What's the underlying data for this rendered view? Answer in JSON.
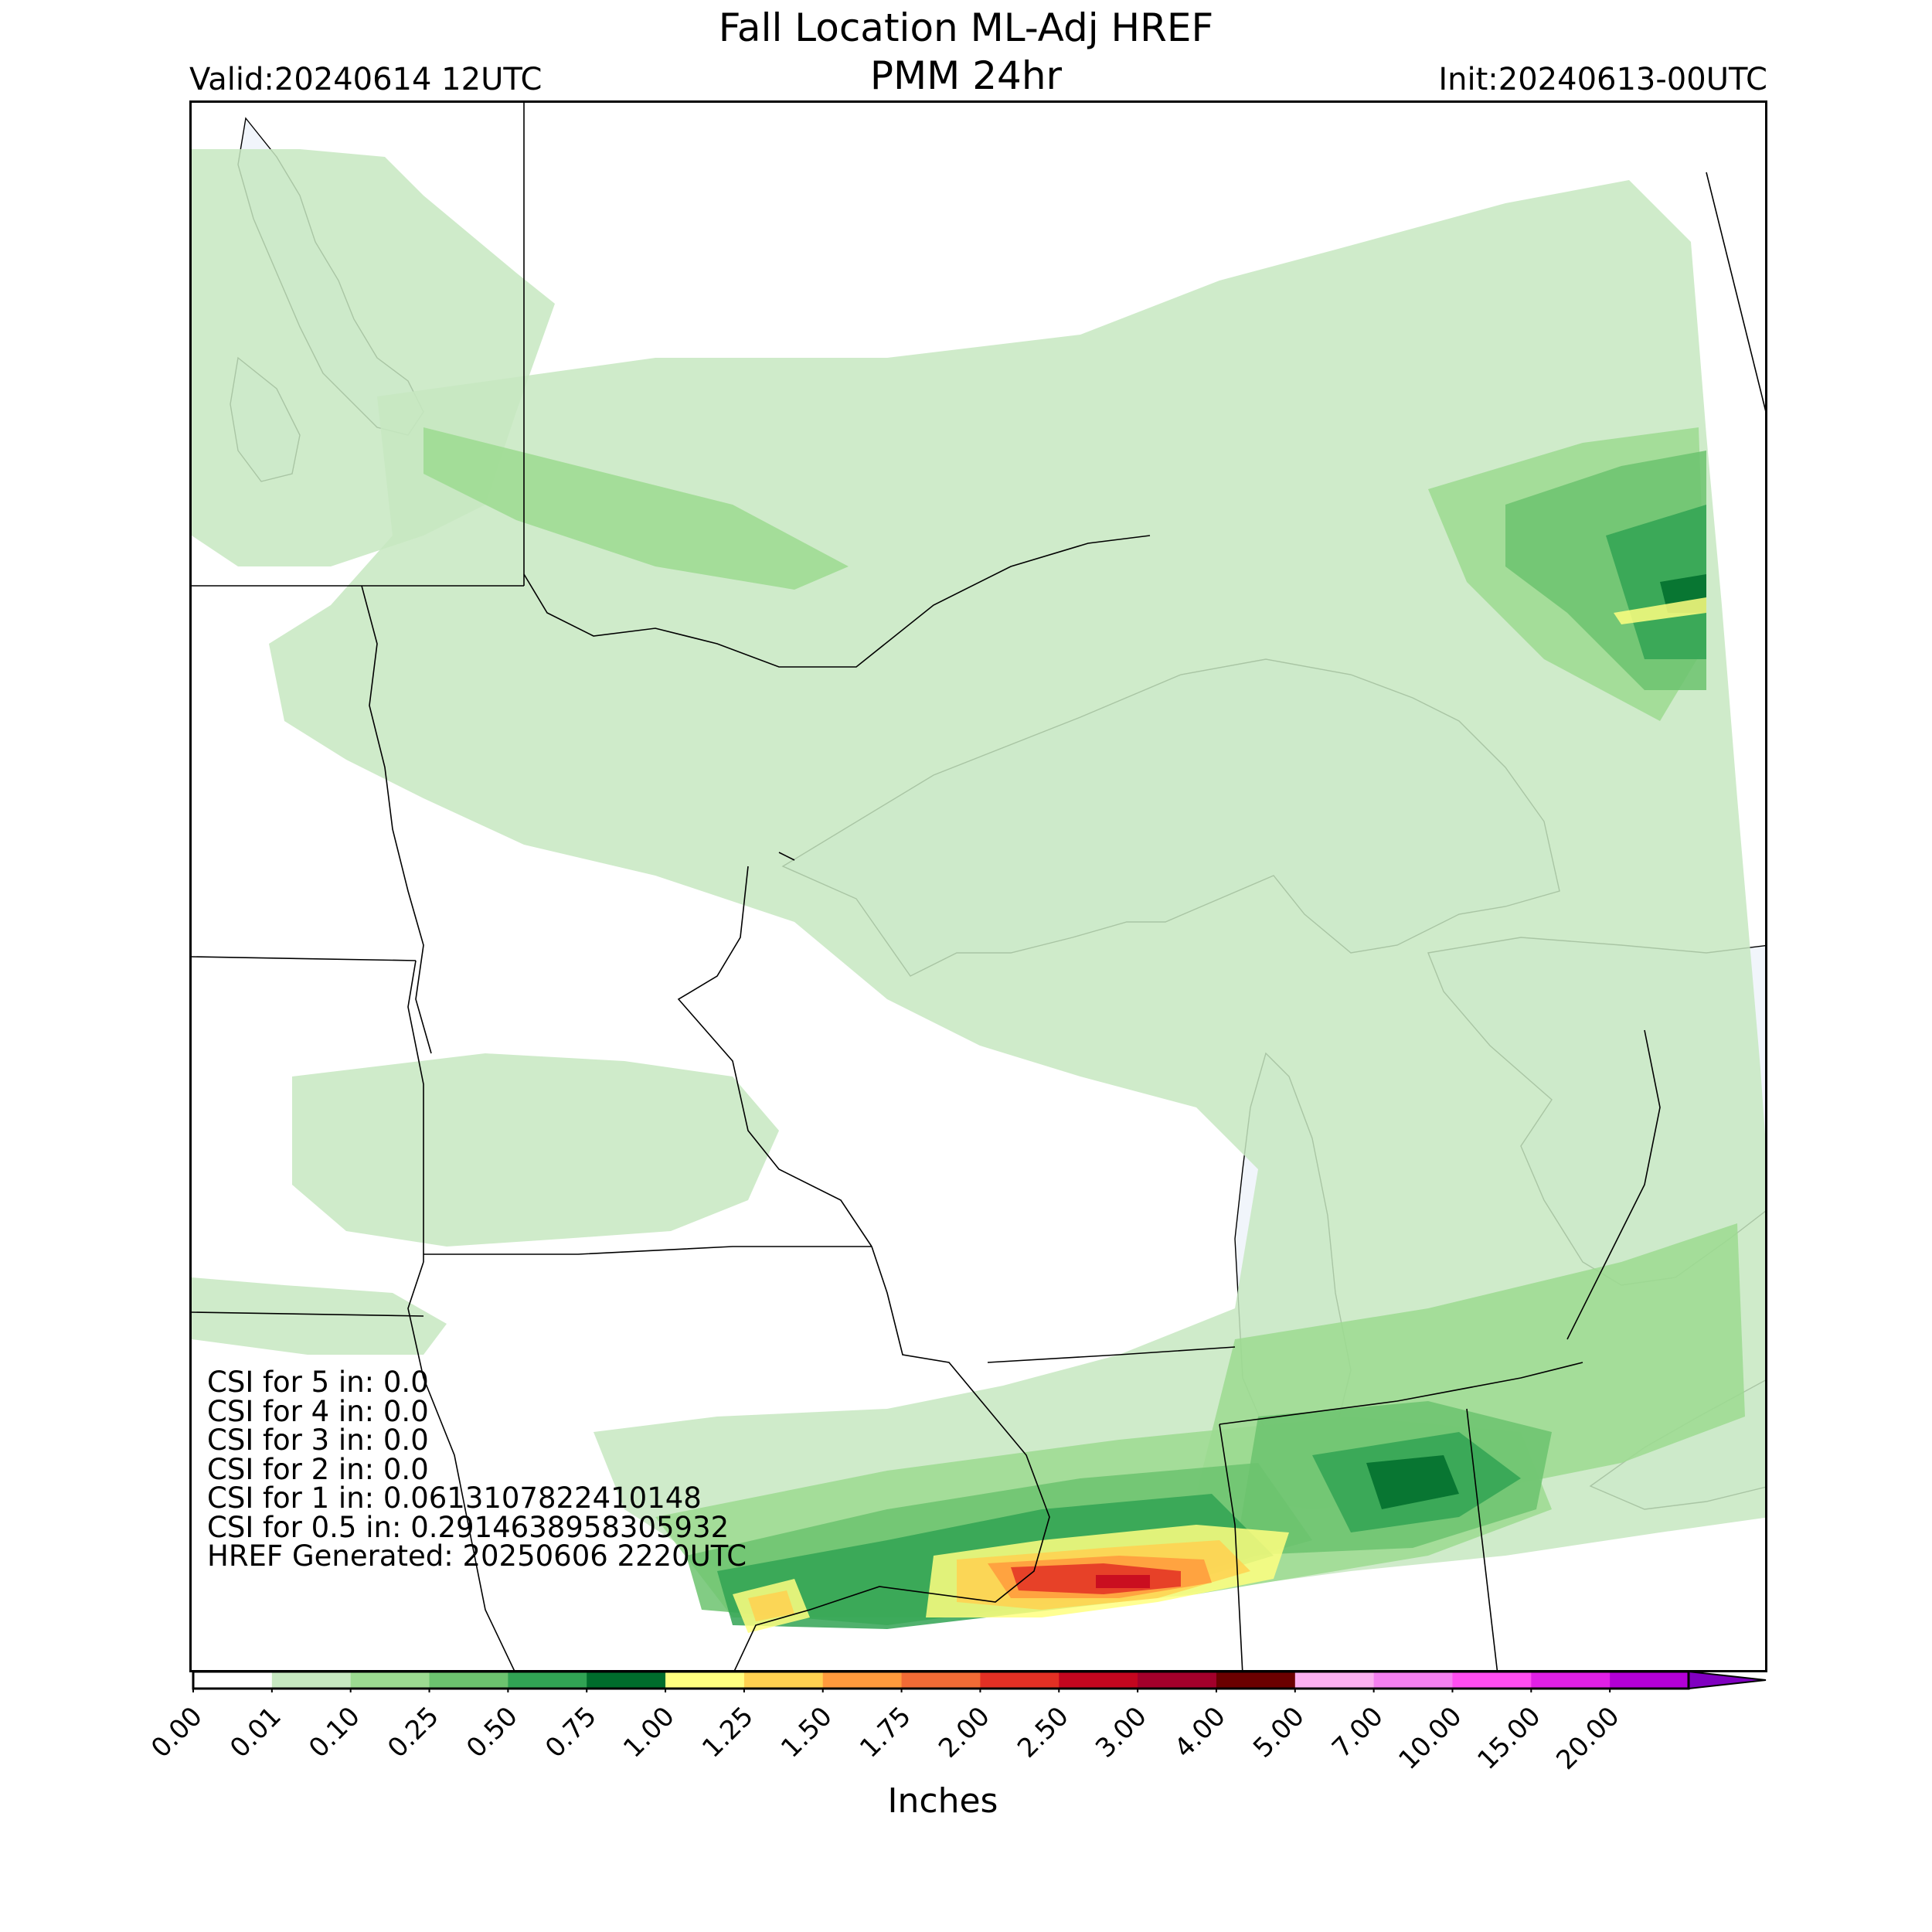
{
  "header": {
    "title_line1": "Fall Location ML-Adj HREF",
    "title_line2": "PMM 24hr",
    "valid": "Valid:20240614 12UTC",
    "init": "Init:20240613-00UTC"
  },
  "stats": {
    "lines": [
      "CSI for 5 in: 0.0",
      "CSI for 4 in: 0.0",
      "CSI for 3 in: 0.0",
      "CSI for 2 in: 0.0",
      "CSI for 1 in: 0.0613107822410148",
      "CSI for 0.5 in: 0.2914638958305932",
      "HREF Generated: 20250606 2220UTC"
    ]
  },
  "colorbar": {
    "label": "Inches",
    "ticks": [
      "0.00",
      "0.01",
      "0.10",
      "0.25",
      "0.50",
      "0.75",
      "1.00",
      "1.25",
      "1.50",
      "1.75",
      "2.00",
      "2.50",
      "3.00",
      "4.00",
      "5.00",
      "7.00",
      "10.00",
      "15.00",
      "20.00"
    ],
    "colors": [
      "#ffffff",
      "#c7e8c1",
      "#9cdb91",
      "#6cc36f",
      "#31a354",
      "#006d2c",
      "#ffff80",
      "#ffd150",
      "#ff9a3c",
      "#f26b35",
      "#e33024",
      "#c4061f",
      "#a3002b",
      "#6b0000",
      "#fcb0f0",
      "#f580f0",
      "#ff4df0",
      "#e020e6",
      "#b300d6",
      "#8000c0"
    ]
  },
  "map": {
    "colors": {
      "water": "#f1f5fb",
      "border": "#000000",
      "light_green": "#c7e8c1",
      "mid_green": "#9cdb91",
      "green": "#6cc36f",
      "dark_green": "#31a354",
      "deep_green": "#006d2c",
      "yellow": "#ffff80",
      "gold": "#ffd150",
      "orange": "#ff9a3c",
      "red": "#e33024",
      "dark_red": "#c4061f"
    }
  }
}
